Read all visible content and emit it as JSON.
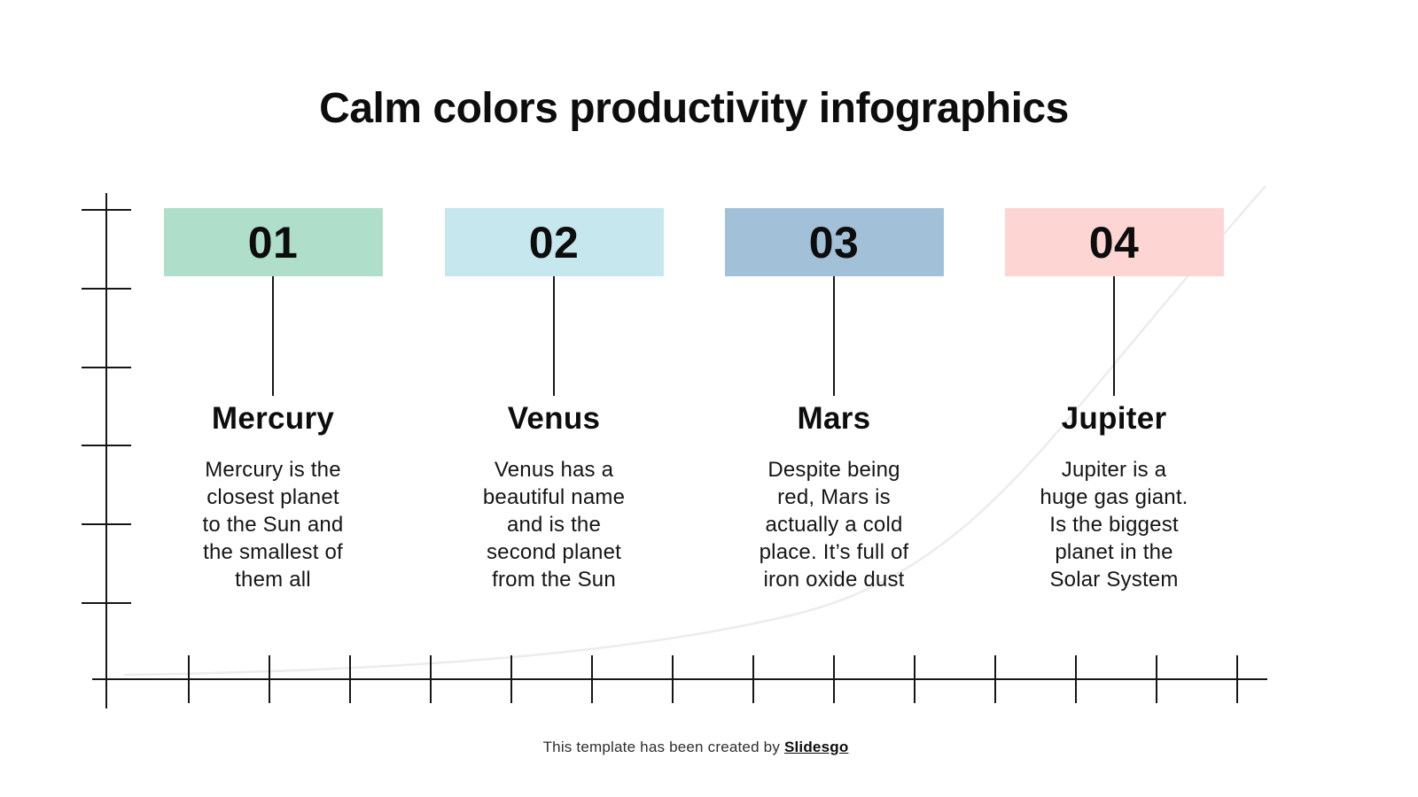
{
  "title": "Calm colors productivity infographics",
  "columns": [
    {
      "number": "01",
      "color": "#afdfca",
      "name": "Mercury",
      "description": "Mercury is the\nclosest planet\nto the Sun and\nthe smallest of\nthem all"
    },
    {
      "number": "02",
      "color": "#c7e7ee",
      "name": "Venus",
      "description": "Venus has a\nbeautiful name\nand is the\nsecond planet\nfrom the Sun"
    },
    {
      "number": "03",
      "color": "#a2c1d9",
      "name": "Mars",
      "description": "Despite being\nred, Mars is\nactually a cold\nplace. It’s full of\niron oxide dust"
    },
    {
      "number": "04",
      "color": "#fdd6d3",
      "name": "Jupiter",
      "description": "Jupiter is a\nhuge gas giant.\nIs the biggest\nplanet in the\nSolar System"
    }
  ],
  "axes": {
    "y_tick_count": 6,
    "x_tick_count": 14
  },
  "footer": {
    "text": "This template has been created by",
    "brand": "Slidesgo"
  }
}
